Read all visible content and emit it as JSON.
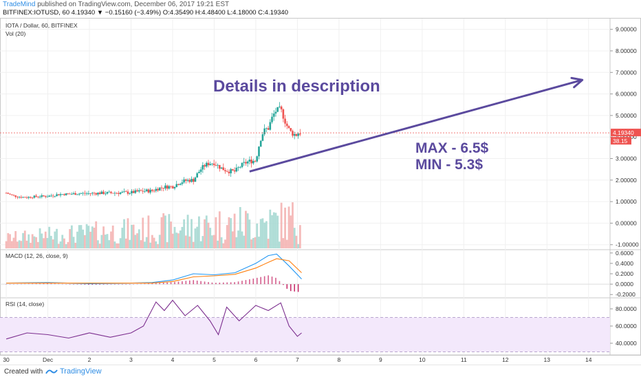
{
  "header": {
    "author": "TradeMind",
    "published": " published on TradingView.com, December 06, 2017 19:21 EST",
    "symbol_line": "BITFINEX:IOTUSD, 60  4.19340  ▼ −0.15160 (−3.49%)  O:4.35490  H:4.48400  L:4.18000  C:4.19340"
  },
  "footer": {
    "created_with": "Created with",
    "brand": "TradingView"
  },
  "colors": {
    "up": "#26a69a",
    "down": "#ef5350",
    "annotation": "#5b4a9e",
    "macd_line": "#2196f3",
    "signal_line": "#ff7f0e",
    "rsi_line": "#7b2d8e",
    "rsi_band": "#f3e8fb",
    "price_tag": "#ef5350"
  },
  "chart_data": [
    {
      "type": "candlestick",
      "title": "IOTA / Dollar, 60, BITFINEX",
      "volume_label": "Vol (20)",
      "last_price": "4.19340",
      "last_volume": "38.15",
      "y_ticks": [
        "9.00000",
        "8.00000",
        "7.00000",
        "6.00000",
        "5.00000",
        "4.00000",
        "3.00000",
        "2.00000",
        "1.00000",
        "0.00000",
        "-1.00000"
      ],
      "ylim": [
        -1.2,
        9.5
      ],
      "x_ticks": [
        "30",
        "Dec",
        "2",
        "3",
        "4",
        "5",
        "6",
        "7",
        "8",
        "9",
        "10",
        "11",
        "12",
        "13",
        "14"
      ],
      "x_tick_days": [
        0,
        1,
        2,
        3,
        4,
        5,
        6,
        7,
        8,
        9,
        10,
        11,
        12,
        13,
        14
      ],
      "xlim": [
        -0.15,
        14.5
      ],
      "ohlc_daily_approx": [
        {
          "x": 0.0,
          "open": 1.4,
          "high": 1.45,
          "low": 1.15,
          "close": 1.2
        },
        {
          "x": 0.5,
          "open": 1.2,
          "high": 1.3,
          "low": 1.1,
          "close": 1.25
        },
        {
          "x": 1.0,
          "open": 1.25,
          "high": 1.4,
          "low": 1.2,
          "close": 1.35
        },
        {
          "x": 1.5,
          "open": 1.35,
          "high": 1.42,
          "low": 1.3,
          "close": 1.38
        },
        {
          "x": 2.0,
          "open": 1.38,
          "high": 1.45,
          "low": 1.33,
          "close": 1.4
        },
        {
          "x": 2.5,
          "open": 1.4,
          "high": 1.48,
          "low": 1.36,
          "close": 1.42
        },
        {
          "x": 3.0,
          "open": 1.42,
          "high": 1.55,
          "low": 1.38,
          "close": 1.5
        },
        {
          "x": 3.5,
          "open": 1.5,
          "high": 1.75,
          "low": 1.45,
          "close": 1.7
        },
        {
          "x": 4.0,
          "open": 1.7,
          "high": 2.1,
          "low": 1.65,
          "close": 2.0
        },
        {
          "x": 4.5,
          "open": 2.0,
          "high": 2.9,
          "low": 1.95,
          "close": 2.8
        },
        {
          "x": 5.0,
          "open": 2.8,
          "high": 2.85,
          "low": 2.2,
          "close": 2.4
        },
        {
          "x": 5.5,
          "open": 2.4,
          "high": 3.0,
          "low": 2.3,
          "close": 2.9
        },
        {
          "x": 6.0,
          "open": 2.9,
          "high": 4.5,
          "low": 2.8,
          "close": 4.4
        },
        {
          "x": 6.3,
          "open": 4.4,
          "high": 5.6,
          "low": 4.2,
          "close": 5.3
        },
        {
          "x": 6.6,
          "open": 5.3,
          "high": 5.4,
          "low": 3.6,
          "close": 4.1
        },
        {
          "x": 7.0,
          "open": 4.1,
          "high": 4.8,
          "low": 3.5,
          "close": 4.19
        }
      ],
      "annotations": {
        "details": "Details in description",
        "max": "MAX - 6.5$",
        "min": "MIN - 5.3$",
        "arrow": {
          "from": {
            "x": 5.85,
            "y": 2.4
          },
          "to": {
            "x": 13.85,
            "y": 6.65
          }
        }
      }
    },
    {
      "type": "line",
      "title": "MACD (12, 26, close, 9)",
      "y_ticks": [
        "0.6000",
        "0.4000",
        "0.2000",
        "0.0000",
        "-0.2000"
      ],
      "ylim": [
        -0.25,
        0.65
      ],
      "series": [
        {
          "name": "MACD",
          "x": [
            0,
            1,
            2,
            3,
            3.5,
            4,
            4.5,
            5,
            5.5,
            6,
            6.3,
            6.5,
            6.8,
            7.1
          ],
          "values": [
            0.02,
            0.03,
            0.01,
            0.02,
            0.03,
            0.08,
            0.2,
            0.18,
            0.22,
            0.4,
            0.55,
            0.58,
            0.35,
            0.1
          ]
        },
        {
          "name": "Signal",
          "x": [
            0,
            1,
            2,
            3,
            3.5,
            4,
            4.5,
            5,
            5.5,
            6,
            6.3,
            6.5,
            6.8,
            7.1
          ],
          "values": [
            0.02,
            0.02,
            0.02,
            0.02,
            0.02,
            0.05,
            0.14,
            0.16,
            0.19,
            0.31,
            0.42,
            0.49,
            0.45,
            0.22
          ]
        }
      ]
    },
    {
      "type": "line",
      "title": "RSI (14, close)",
      "y_ticks": [
        "80.0000",
        "60.0000",
        "40.0000"
      ],
      "ylim": [
        28,
        92
      ],
      "band": [
        30,
        70
      ],
      "series": [
        {
          "name": "RSI",
          "x": [
            0,
            0.5,
            1,
            1.5,
            2,
            2.5,
            3,
            3.3,
            3.6,
            3.8,
            4,
            4.3,
            4.6,
            4.9,
            5.1,
            5.3,
            5.6,
            6.0,
            6.3,
            6.6,
            6.8,
            7.0,
            7.1
          ],
          "values": [
            45,
            52,
            50,
            46,
            52,
            47,
            52,
            60,
            88,
            78,
            90,
            72,
            84,
            66,
            50,
            82,
            66,
            84,
            78,
            87,
            60,
            48,
            52
          ]
        }
      ]
    }
  ]
}
